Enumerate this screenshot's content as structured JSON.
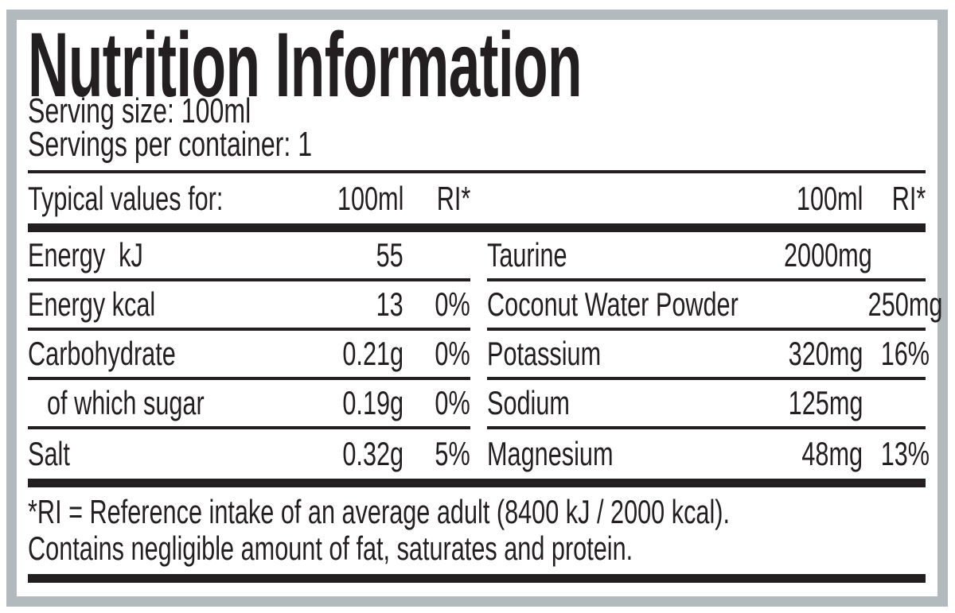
{
  "title": "Nutrition Information",
  "serving": {
    "size_line": "Serving size: 100ml",
    "per_container_line": "Servings per container: 1"
  },
  "table": {
    "left": {
      "header": {
        "label": "Typical values for:",
        "amount": "100ml",
        "ri": "RI*"
      },
      "rows": [
        {
          "label": "Energy  kJ",
          "amount": "55",
          "ri": ""
        },
        {
          "label": "Energy kcal",
          "amount": "13",
          "ri": "0%"
        },
        {
          "label": "Carbohydrate",
          "amount": "0.21g",
          "ri": "0%"
        },
        {
          "label": "of which sugar",
          "amount": "0.19g",
          "ri": "0%"
        },
        {
          "label": "Salt",
          "amount": "0.32g",
          "ri": "5%"
        }
      ]
    },
    "right": {
      "header": {
        "label": "",
        "amount": "100ml",
        "ri": "RI*"
      },
      "rows": [
        {
          "label": "Taurine",
          "amount": "2000mg",
          "ri": ""
        },
        {
          "label": "Coconut Water Powder",
          "amount": "250mg",
          "ri": ""
        },
        {
          "label": "Potassium",
          "amount": "320mg",
          "ri": "16%"
        },
        {
          "label": "Sodium",
          "amount": "125mg",
          "ri": ""
        },
        {
          "label": "Magnesium",
          "amount": "48mg",
          "ri": "13%"
        }
      ]
    }
  },
  "footnotes": [
    "*RI = Reference intake of an average adult (8400 kJ / 2000 kcal).",
    "Contains negligible amount of fat, saturates and protein."
  ],
  "colors": {
    "text_black": "#231f20",
    "border_gray": "#b2babe",
    "background": "#ffffff"
  }
}
